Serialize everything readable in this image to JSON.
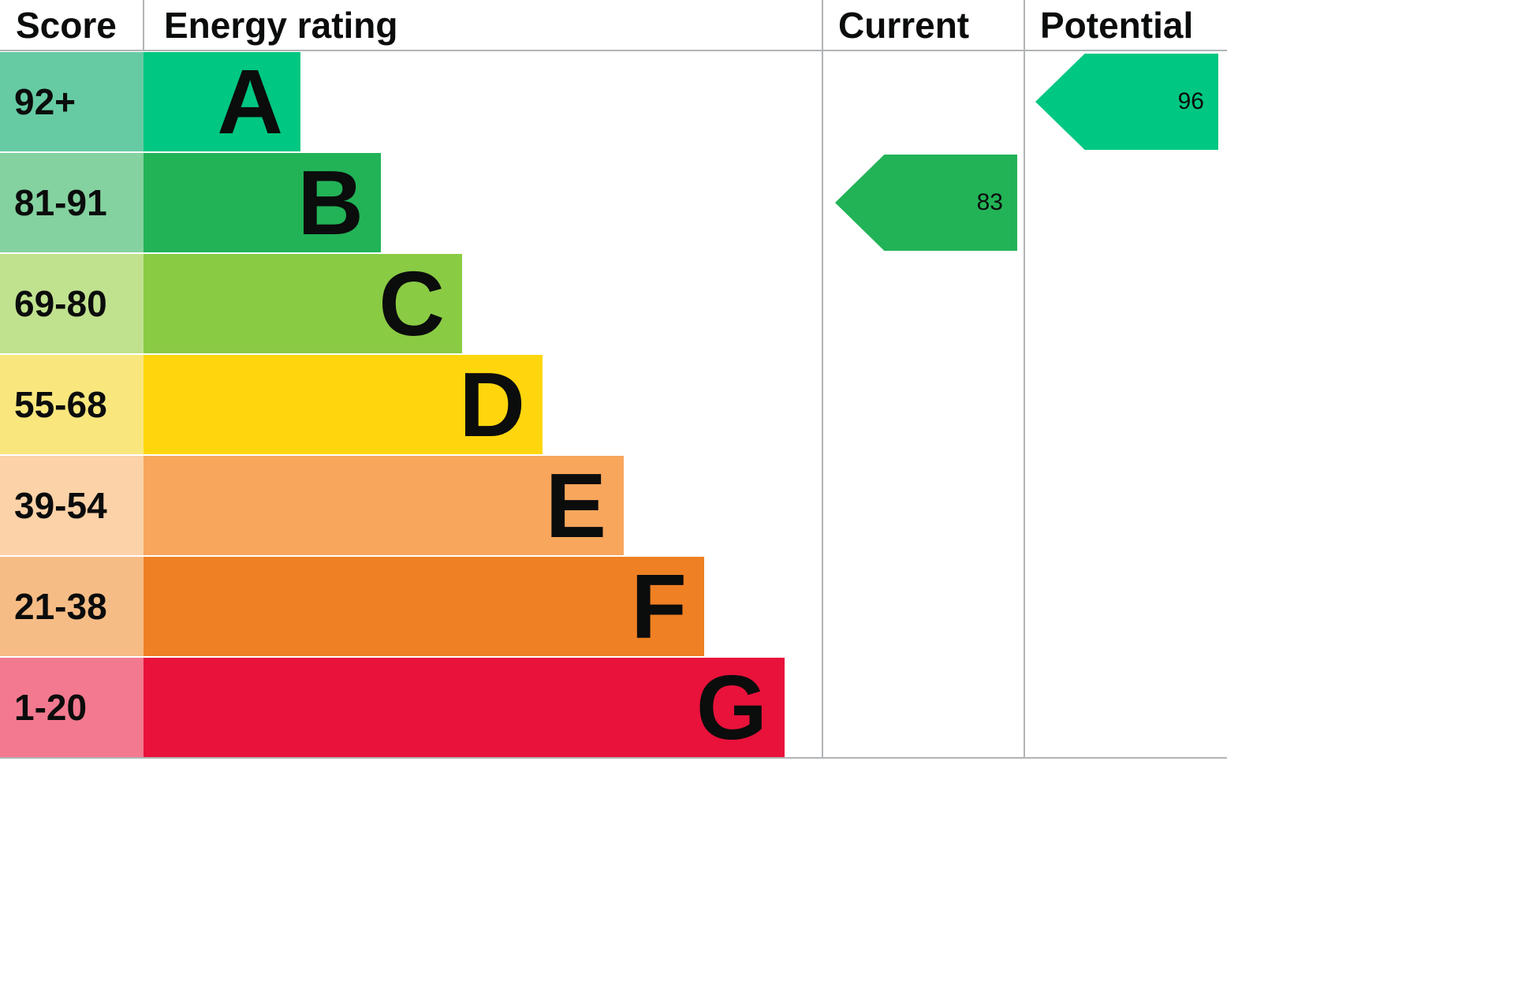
{
  "header": {
    "score": "Score",
    "energy_rating": "Energy rating",
    "current": "Current",
    "potential": "Potential"
  },
  "chart_data": {
    "type": "bar",
    "title": "Energy rating (EPC efficiency chart)",
    "columns": [
      "Score",
      "Energy rating",
      "Current",
      "Potential"
    ],
    "bands": [
      {
        "letter": "A",
        "range": "92+",
        "color": "#00c781",
        "score_bg": "#66cba3"
      },
      {
        "letter": "B",
        "range": "81-91",
        "color": "#22b357",
        "score_bg": "#84d29f"
      },
      {
        "letter": "C",
        "range": "69-80",
        "color": "#8acb44",
        "score_bg": "#c0e28f"
      },
      {
        "letter": "D",
        "range": "55-68",
        "color": "#ffd60d",
        "score_bg": "#f9e77e"
      },
      {
        "letter": "E",
        "range": "39-54",
        "color": "#f8a65c",
        "score_bg": "#fcd2a8"
      },
      {
        "letter": "F",
        "range": "21-38",
        "color": "#ef8023",
        "score_bg": "#f6bc85"
      },
      {
        "letter": "G",
        "range": "1-20",
        "color": "#e8123b",
        "score_bg": "#f2798f"
      }
    ],
    "current": {
      "value": 83,
      "band": "B",
      "color": "#22b357"
    },
    "potential": {
      "value": 96,
      "band": "A",
      "color": "#00c781"
    },
    "border_color": "#b1b4b6"
  }
}
